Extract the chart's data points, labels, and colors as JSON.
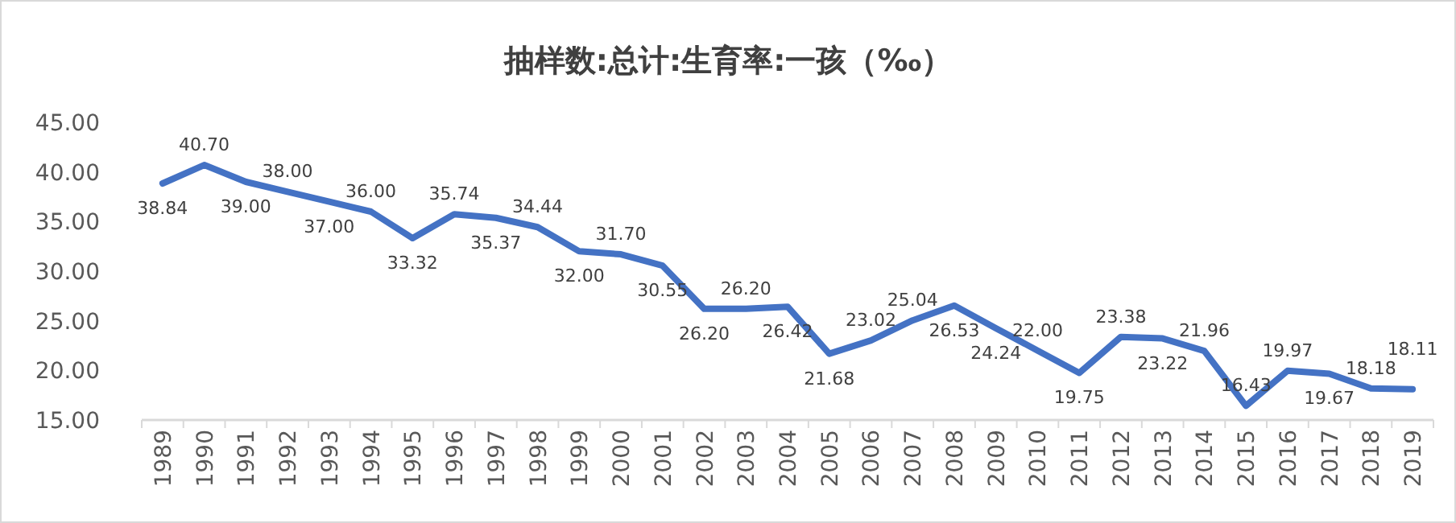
{
  "chart_data": {
    "type": "line",
    "title": "抽样数:总计:生育率:一孩（‰）",
    "categories": [
      "1989",
      "1990",
      "1991",
      "1992",
      "1993",
      "1994",
      "1995",
      "1996",
      "1997",
      "1998",
      "1999",
      "2000",
      "2001",
      "2002",
      "2003",
      "2004",
      "2005",
      "2006",
      "2007",
      "2008",
      "2009",
      "2010",
      "2011",
      "2012",
      "2013",
      "2014",
      "2015",
      "2016",
      "2017",
      "2018",
      "2019"
    ],
    "series": [
      {
        "color": "#4472c4",
        "values": [
          38.84,
          40.7,
          39.0,
          38.0,
          37.0,
          36.0,
          33.32,
          35.74,
          35.37,
          34.44,
          32.0,
          31.7,
          30.55,
          26.2,
          26.2,
          26.42,
          21.68,
          23.02,
          25.04,
          26.53,
          24.24,
          22.0,
          19.75,
          23.38,
          23.22,
          21.96,
          16.43,
          19.97,
          19.67,
          18.18,
          18.11
        ],
        "value_labels": [
          "38.84",
          "40.70",
          "39.00",
          "38.00",
          "37.00",
          "36.00",
          "33.32",
          "35.74",
          "35.37",
          "34.44",
          "32.00",
          "31.70",
          "30.55",
          "26.20",
          "26.20",
          "26.42",
          "21.68",
          "23.02",
          "25.04",
          "26.53",
          "24.24",
          "22.00",
          "19.75",
          "23.38",
          "23.22",
          "21.96",
          "16.43",
          "19.97",
          "19.67",
          "18.18",
          "18.11"
        ]
      }
    ],
    "ylim": [
      15,
      45
    ],
    "yticks": [
      {
        "value": 15,
        "label": "15.00"
      },
      {
        "value": 20,
        "label": "20.00"
      },
      {
        "value": 25,
        "label": "25.00"
      },
      {
        "value": 30,
        "label": "30.00"
      },
      {
        "value": 35,
        "label": "35.00"
      },
      {
        "value": 40,
        "label": "40.00"
      },
      {
        "value": 45,
        "label": "45.00"
      }
    ],
    "grid": false,
    "marker": "none",
    "line_style": "solid"
  }
}
